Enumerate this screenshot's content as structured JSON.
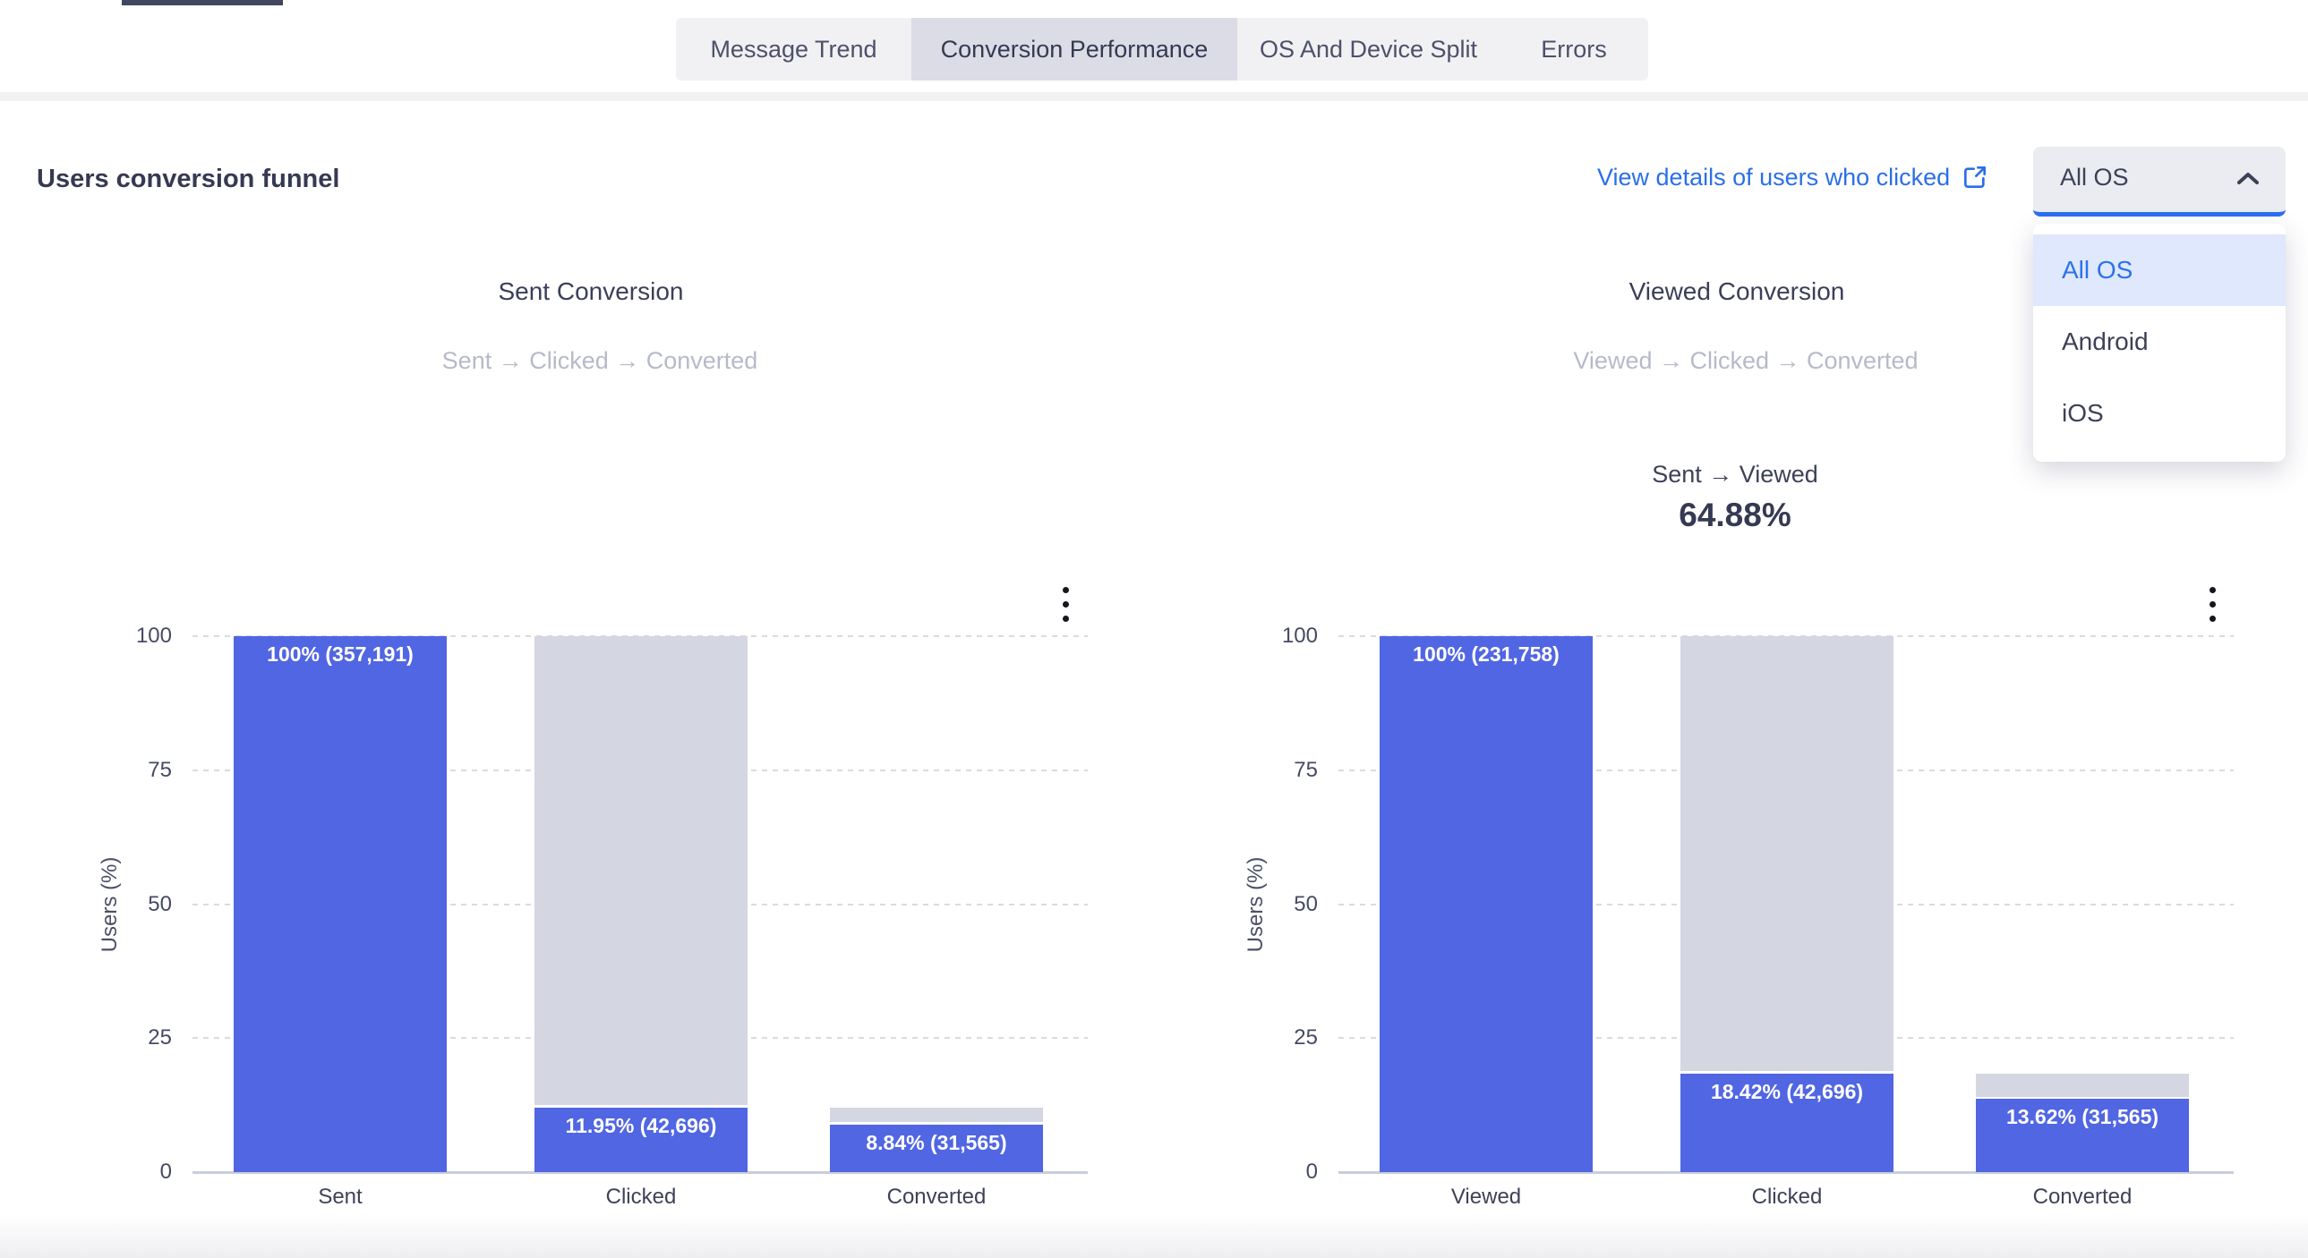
{
  "tabs": {
    "items": [
      {
        "label": "Message Trend",
        "active": false
      },
      {
        "label": "Conversion Performance",
        "active": true
      },
      {
        "label": "OS And Device Split",
        "active": false
      },
      {
        "label": "Errors",
        "active": false
      }
    ]
  },
  "section": {
    "title": "Users conversion funnel",
    "details_link_label": "View details of users who clicked"
  },
  "os_dropdown": {
    "value": "All OS",
    "options": [
      "All OS",
      "Android",
      "iOS"
    ],
    "selected_index": 0,
    "state": "open"
  },
  "icons": {
    "external_link": "external-link-icon",
    "chevron_up": "chevron-up-icon",
    "kebab": "kebab-menu-icon"
  },
  "colors": {
    "bar_value": "#5166e2",
    "bar_remainder": "#d4d6e2",
    "link_blue": "#2b6fe8",
    "dropdown_underline": "#2b6ff0",
    "menu_highlight_bg": "#dfe8fc",
    "active_tab_bg": "#dbdce6",
    "tab_bar_bg": "#f1f1f3",
    "title_text": "#353a52",
    "subtitle_text": "#b6bac9"
  },
  "chart_data": [
    {
      "type": "bar",
      "title": "Sent Conversion",
      "subtitle": "Sent → Clicked → Converted",
      "ylabel": "Users (%)",
      "ylim": [
        0,
        100
      ],
      "yticks": [
        0,
        25,
        50,
        75,
        100
      ],
      "grid": "dashed-horizontal",
      "categories": [
        "Sent",
        "Clicked",
        "Converted"
      ],
      "series": [
        {
          "name": "users_pct",
          "values": [
            100,
            11.95,
            8.84
          ]
        },
        {
          "name": "previous_stage_pct_gray_cap",
          "values": [
            null,
            100,
            11.95
          ]
        }
      ],
      "counts": [
        357191,
        42696,
        31565
      ],
      "bar_labels": [
        "100% (357,191)",
        "11.95% (42,696)",
        "8.84% (31,565)"
      ]
    },
    {
      "type": "bar",
      "title": "Viewed Conversion",
      "subtitle": "Viewed → Clicked → Converted",
      "conversion_note": {
        "label": "Sent → Viewed",
        "value": "64.88%"
      },
      "ylabel": "Users (%)",
      "ylim": [
        0,
        100
      ],
      "yticks": [
        0,
        25,
        50,
        75,
        100
      ],
      "grid": "dashed-horizontal",
      "categories": [
        "Viewed",
        "Clicked",
        "Converted"
      ],
      "series": [
        {
          "name": "users_pct",
          "values": [
            100,
            18.42,
            13.62
          ]
        },
        {
          "name": "previous_stage_pct_gray_cap",
          "values": [
            null,
            100,
            18.42
          ]
        }
      ],
      "counts": [
        231758,
        42696,
        31565
      ],
      "bar_labels": [
        "100% (231,758)",
        "18.42% (42,696)",
        "13.62% (31,565)"
      ]
    }
  ]
}
